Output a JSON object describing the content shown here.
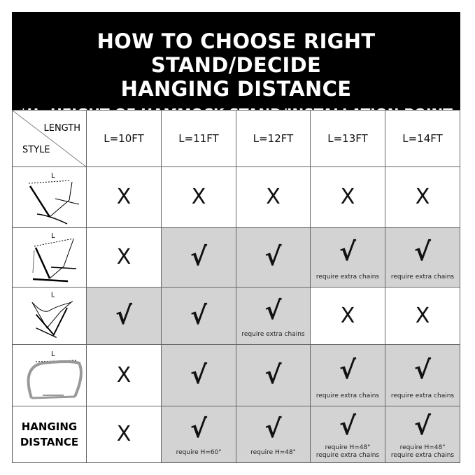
{
  "title_line1": "HOW TO CHOOSE RIGHT STAND/DECIDE",
  "title_line2": "HANGING DISTANCE",
  "subtitle": "*H=HEIGHT OF HAMMOCK STAND/INSTALLATION POINT",
  "corner": {
    "top": "LENGTH",
    "bottom": "STYLE"
  },
  "columns": [
    "L=10FT",
    "L=11FT",
    "L=12FT",
    "L=13FT",
    "L=14FT"
  ],
  "icon_label": "L",
  "symbols": {
    "no": "X",
    "yes": "√"
  },
  "shade_color": "#d3d3d3",
  "rows": [
    {
      "style": "stand-style-1-icon",
      "cells": [
        {
          "m": "X",
          "s": false,
          "n": ""
        },
        {
          "m": "X",
          "s": false,
          "n": ""
        },
        {
          "m": "X",
          "s": false,
          "n": ""
        },
        {
          "m": "X",
          "s": false,
          "n": ""
        },
        {
          "m": "X",
          "s": false,
          "n": ""
        }
      ]
    },
    {
      "style": "stand-style-2-icon",
      "cells": [
        {
          "m": "X",
          "s": false,
          "n": ""
        },
        {
          "m": "√",
          "s": true,
          "n": ""
        },
        {
          "m": "√",
          "s": true,
          "n": ""
        },
        {
          "m": "√",
          "s": true,
          "n": "require extra chains"
        },
        {
          "m": "√",
          "s": true,
          "n": "require extra chains"
        }
      ]
    },
    {
      "style": "stand-style-3-icon",
      "cells": [
        {
          "m": "√",
          "s": true,
          "n": ""
        },
        {
          "m": "√",
          "s": true,
          "n": ""
        },
        {
          "m": "√",
          "s": true,
          "n": "require extra chains"
        },
        {
          "m": "X",
          "s": false,
          "n": ""
        },
        {
          "m": "X",
          "s": false,
          "n": ""
        }
      ]
    },
    {
      "style": "arc-stand-icon",
      "cells": [
        {
          "m": "X",
          "s": false,
          "n": ""
        },
        {
          "m": "√",
          "s": true,
          "n": ""
        },
        {
          "m": "√",
          "s": true,
          "n": ""
        },
        {
          "m": "√",
          "s": true,
          "n": "require extra chains"
        },
        {
          "m": "√",
          "s": true,
          "n": "require extra chains"
        }
      ]
    },
    {
      "label": "HANGING DISTANCE",
      "cells": [
        {
          "m": "X",
          "s": false,
          "n": ""
        },
        {
          "m": "√",
          "s": true,
          "n": "require H=60\""
        },
        {
          "m": "√",
          "s": true,
          "n": "require H=48\""
        },
        {
          "m": "√",
          "s": true,
          "n": "require H=48\"\nrequire extra chains"
        },
        {
          "m": "√",
          "s": true,
          "n": "require H=48\"\nrequire extra chains"
        }
      ]
    }
  ]
}
